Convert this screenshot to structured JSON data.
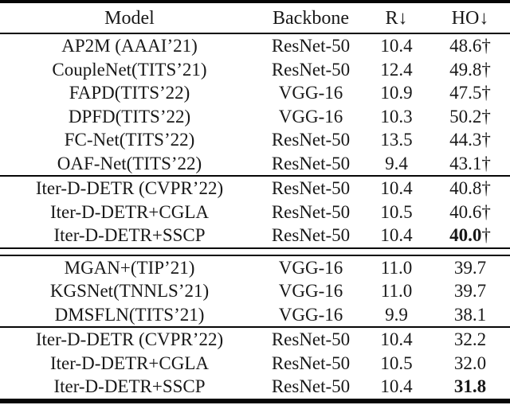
{
  "table": {
    "header": {
      "model": "Model",
      "backbone": "Backbone",
      "r": "R↓",
      "ho": "HO↓"
    },
    "groups": [
      {
        "rows": [
          {
            "model": "AP2M (AAAI’21)",
            "backbone": "ResNet-50",
            "r": "10.4",
            "ho": "48.6",
            "dagger": "†",
            "ho_bold": false
          },
          {
            "model": "CoupleNet(TITS’21)",
            "backbone": "ResNet-50",
            "r": "12.4",
            "ho": "49.8",
            "dagger": "†",
            "ho_bold": false
          },
          {
            "model": "FAPD(TITS’22)",
            "backbone": "VGG-16",
            "r": "10.9",
            "ho": "47.5",
            "dagger": "†",
            "ho_bold": false
          },
          {
            "model": "DPFD(TITS’22)",
            "backbone": "VGG-16",
            "r": "10.3",
            "ho": "50.2",
            "dagger": "†",
            "ho_bold": false
          },
          {
            "model": "FC-Net(TITS’22)",
            "backbone": "ResNet-50",
            "r": "13.5",
            "ho": "44.3",
            "dagger": "†",
            "ho_bold": false
          },
          {
            "model": "OAF-Net(TITS’22)",
            "backbone": "ResNet-50",
            "r": "9.4",
            "ho": "43.1",
            "dagger": "†",
            "ho_bold": false
          }
        ]
      },
      {
        "rows": [
          {
            "model": "Iter-D-DETR (CVPR’22)",
            "backbone": "ResNet-50",
            "r": "10.4",
            "ho": "40.8",
            "dagger": "†",
            "ho_bold": false
          },
          {
            "model": "Iter-D-DETR+CGLA",
            "backbone": "ResNet-50",
            "r": "10.5",
            "ho": "40.6",
            "dagger": "†",
            "ho_bold": false
          },
          {
            "model": "Iter-D-DETR+SSCP",
            "backbone": "ResNet-50",
            "r": "10.4",
            "ho": "40.0",
            "dagger": "†",
            "ho_bold": true
          }
        ]
      },
      {
        "rows": [
          {
            "model": "MGAN+(TIP’21)",
            "backbone": "VGG-16",
            "r": "11.0",
            "ho": "39.7",
            "dagger": "",
            "ho_bold": false
          },
          {
            "model": "KGSNet(TNNLS’21)",
            "backbone": "VGG-16",
            "r": "11.0",
            "ho": "39.7",
            "dagger": "",
            "ho_bold": false
          },
          {
            "model": "DMSFLN(TITS’21)",
            "backbone": "VGG-16",
            "r": "9.9",
            "ho": "38.1",
            "dagger": "",
            "ho_bold": false
          }
        ]
      },
      {
        "rows": [
          {
            "model": "Iter-D-DETR (CVPR’22)",
            "backbone": "ResNet-50",
            "r": "10.4",
            "ho": "32.2",
            "dagger": "",
            "ho_bold": false
          },
          {
            "model": "Iter-D-DETR+CGLA",
            "backbone": "ResNet-50",
            "r": "10.5",
            "ho": "32.0",
            "dagger": "",
            "ho_bold": false
          },
          {
            "model": "Iter-D-DETR+SSCP",
            "backbone": "ResNet-50",
            "r": "10.4",
            "ho": "31.8",
            "dagger": "",
            "ho_bold": true
          }
        ]
      }
    ]
  }
}
